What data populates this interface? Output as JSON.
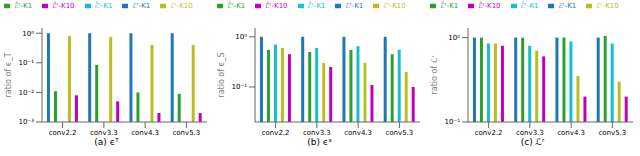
{
  "chart_data": [
    {
      "type": "bar",
      "title": "(a) ϵᵀ",
      "y_label": "ratio of ϵ_T",
      "log": "y",
      "categories": [
        "conv2.2",
        "conv3.3",
        "conv4.3",
        "conv5.3"
      ],
      "ylim": [
        0.001,
        1.5
      ],
      "yticks": [
        {
          "value": 0.001,
          "label": "10⁻³"
        },
        {
          "value": 0.01,
          "label": "10⁻²"
        },
        {
          "value": 0.1,
          "label": "10⁻¹"
        },
        {
          "value": 1,
          "label": "10⁰"
        }
      ],
      "series": [
        {
          "name": "ℰᵗ-K1",
          "color": "#1f77b4",
          "values": [
            1,
            1,
            1,
            1
          ]
        },
        {
          "name": "ℰ̂ᵗ-K1",
          "color": "#2ca02c",
          "values": [
            0.011,
            0.085,
            0.01,
            0.009
          ]
        },
        {
          "name": "ℰ̃ᵗ-K1",
          "color": "#17becf",
          "values": [
            null,
            null,
            null,
            null
          ]
        },
        {
          "name": "ℰᵗ-K10",
          "color": "#bcbd22",
          "values": [
            0.8,
            0.75,
            0.4,
            0.4
          ]
        },
        {
          "name": "ℰ̂ᵗ-K10",
          "color": "#bf00bf",
          "values": [
            0.008,
            0.005,
            0.002,
            0.002
          ]
        }
      ]
    },
    {
      "type": "bar",
      "title": "(b) ϵˢ",
      "y_label": "ratio of ϵ_S",
      "log": "y",
      "categories": [
        "conv2.2",
        "conv3.3",
        "conv4.3",
        "conv5.3"
      ],
      "ylim": [
        0.02,
        1.5
      ],
      "yticks": [
        {
          "value": 0.1,
          "label": "10⁻¹"
        },
        {
          "value": 1,
          "label": "10⁰"
        }
      ],
      "series": [
        {
          "name": "ℰᵗ-K1",
          "color": "#1f77b4",
          "values": [
            1,
            1,
            1,
            1
          ]
        },
        {
          "name": "ℰ̂ᵗ-K1",
          "color": "#2ca02c",
          "values": [
            0.55,
            0.5,
            0.55,
            0.45
          ]
        },
        {
          "name": "ℰ̃ᵗ-K1",
          "color": "#17becf",
          "values": [
            0.7,
            0.6,
            0.65,
            0.55
          ]
        },
        {
          "name": "ℰᵗ-K10",
          "color": "#bcbd22",
          "values": [
            0.6,
            0.3,
            0.3,
            0.2
          ]
        },
        {
          "name": "ℰ̂ᵗ-K10",
          "color": "#bf00bf",
          "values": [
            0.45,
            0.25,
            0.11,
            0.1
          ]
        }
      ]
    },
    {
      "type": "bar",
      "title": "(c) ℒʳ",
      "y_label": "ratio of ℒʳ",
      "log": "y",
      "categories": [
        "conv2.2",
        "conv3.3",
        "conv4.3",
        "conv5.3"
      ],
      "ylim": [
        0.1,
        1.3
      ],
      "yticks": [
        {
          "value": 0.1,
          "label": "10⁻¹"
        },
        {
          "value": 1,
          "label": "10⁰"
        }
      ],
      "series": [
        {
          "name": "ℰᵗ-K1",
          "color": "#1f77b4",
          "values": [
            1,
            1,
            1,
            1
          ]
        },
        {
          "name": "ℰ̂ᵗ-K1",
          "color": "#2ca02c",
          "values": [
            1,
            1,
            1,
            1.05
          ]
        },
        {
          "name": "ℰ̃ᵗ-K1",
          "color": "#17becf",
          "values": [
            0.85,
            0.8,
            0.9,
            0.85
          ]
        },
        {
          "name": "ℰᵗ-K10",
          "color": "#bcbd22",
          "values": [
            0.85,
            0.7,
            0.35,
            0.3
          ]
        },
        {
          "name": "ℰ̂ᵗ-K10",
          "color": "#bf00bf",
          "values": [
            0.8,
            0.6,
            0.2,
            0.2
          ]
        }
      ]
    }
  ]
}
